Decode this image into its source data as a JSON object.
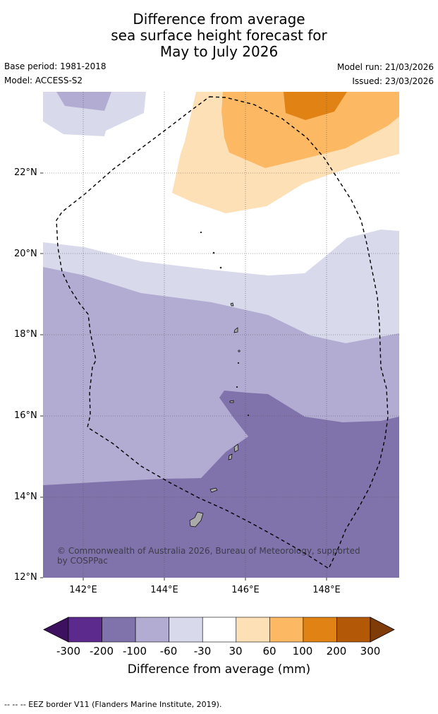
{
  "title": {
    "line1": "Difference from average",
    "line2": "sea surface height forecast for",
    "line3": "May to July 2026"
  },
  "meta": {
    "base_period": "Base period: 1981-2018",
    "model": "Model: ACCESS-S2",
    "model_run": "Model run: 21/03/2026",
    "issued": "Issued: 23/03/2026"
  },
  "axes": {
    "latitudes": [
      "22°N",
      "20°N",
      "18°N",
      "16°N",
      "14°N",
      "12°N"
    ],
    "longitudes": [
      "142°E",
      "144°E",
      "146°E",
      "148°E"
    ]
  },
  "copyright": "© Commonwealth of Australia 2026, Bureau of Meteorology, supported by COSPPac",
  "colorbar": {
    "colors": [
      "#3d1060",
      "#5b2a8c",
      "#8073ac",
      "#b2abd2",
      "#d8daeb",
      "#ffffff",
      "#fee0b6",
      "#fdb863",
      "#e08214",
      "#b35806",
      "#7f3b08"
    ],
    "ticks": [
      "-300",
      "-200",
      "-100",
      "-60",
      "-30",
      "30",
      "60",
      "100",
      "200",
      "300"
    ],
    "label": "Difference from average (mm)"
  },
  "legend": {
    "eez_text": "--  --  -- EEZ border V11 (Flanders Marine Institute, 2019)."
  }
}
